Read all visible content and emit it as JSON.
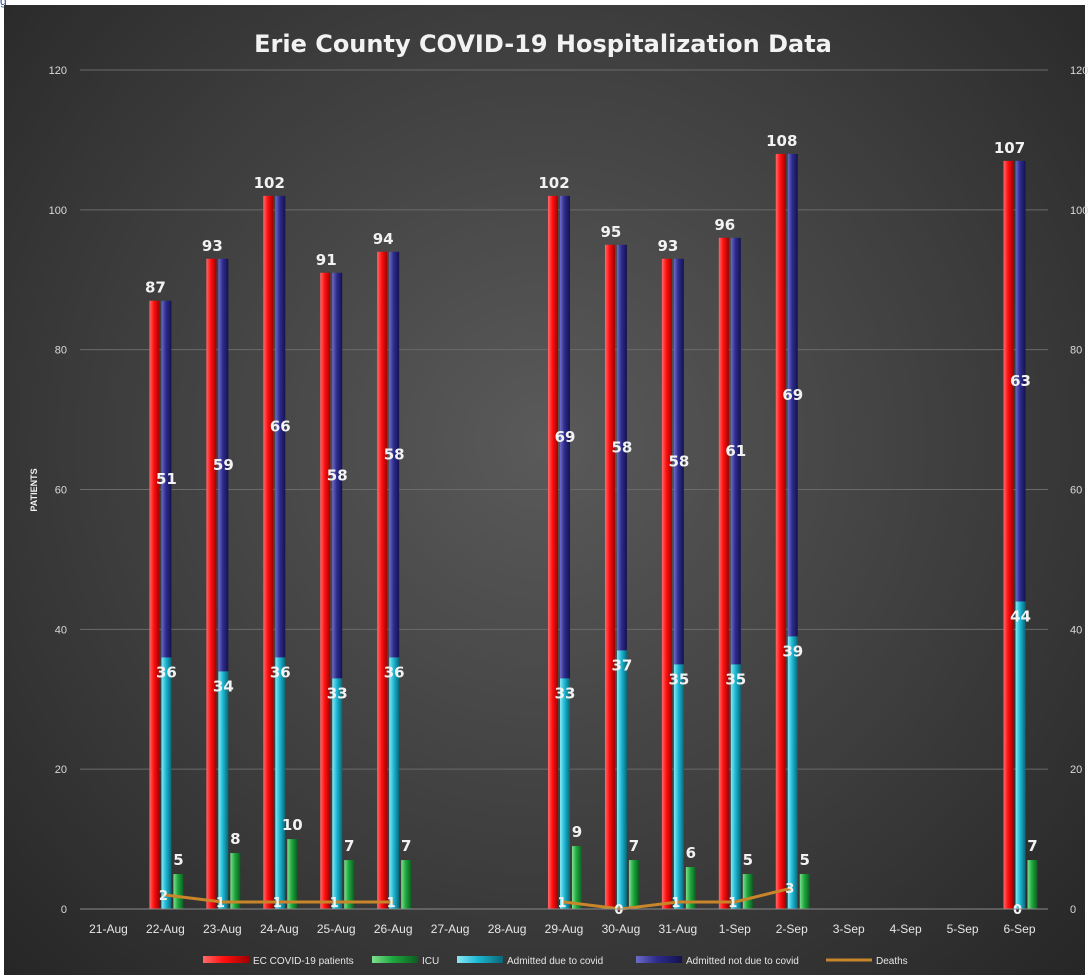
{
  "caption": "g",
  "chart_data": {
    "type": "bar",
    "title": "Erie County COVID-19 Hospitalization Data",
    "ylabel": "PATIENTS",
    "ylim": [
      0,
      120
    ],
    "yticks": [
      0,
      20,
      40,
      60,
      80,
      100,
      120
    ],
    "grid": true,
    "legend_position": "bottom",
    "categories": [
      "21-Aug",
      "22-Aug",
      "23-Aug",
      "24-Aug",
      "25-Aug",
      "26-Aug",
      "27-Aug",
      "28-Aug",
      "29-Aug",
      "30-Aug",
      "31-Aug",
      "1-Sep",
      "2-Sep",
      "3-Sep",
      "4-Sep",
      "5-Sep",
      "6-Sep"
    ],
    "series": [
      {
        "name": "EC COVID-19 patients",
        "kind": "bar",
        "color": "#ff1a1a",
        "values": [
          null,
          87,
          93,
          102,
          91,
          94,
          null,
          null,
          102,
          95,
          93,
          96,
          108,
          null,
          null,
          null,
          107
        ]
      },
      {
        "name": "ICU",
        "kind": "bar",
        "color": "#22b14c",
        "values": [
          null,
          5,
          8,
          10,
          7,
          7,
          null,
          null,
          9,
          7,
          6,
          5,
          5,
          null,
          null,
          null,
          7
        ]
      },
      {
        "name": "Admitted due to covid",
        "kind": "stacked-bar",
        "color": "#22c4e0",
        "values": [
          null,
          36,
          34,
          36,
          33,
          36,
          null,
          null,
          33,
          37,
          35,
          35,
          39,
          null,
          null,
          null,
          44
        ]
      },
      {
        "name": "Admitted not due to covid",
        "kind": "stacked-bar",
        "color": "#3c3a9e",
        "values": [
          null,
          51,
          59,
          66,
          58,
          58,
          null,
          null,
          69,
          58,
          58,
          61,
          69,
          null,
          null,
          null,
          63
        ]
      },
      {
        "name": "Deaths",
        "kind": "line",
        "color": "#c8852a",
        "values": [
          null,
          2,
          1,
          1,
          1,
          1,
          null,
          null,
          1,
          0,
          1,
          1,
          3,
          null,
          null,
          null,
          0
        ]
      }
    ]
  }
}
